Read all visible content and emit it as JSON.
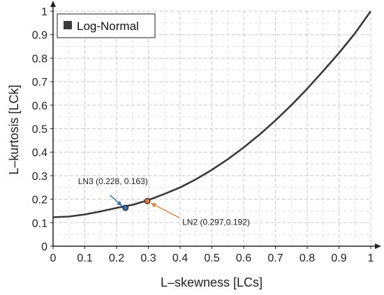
{
  "chart_data": {
    "type": "line",
    "xlabel": "L–skewness [LCs]",
    "ylabel": "L–kurtosis [LCk]",
    "xlim": [
      0,
      1
    ],
    "ylim": [
      0,
      1
    ],
    "x_ticks": [
      "0",
      "0.1",
      "0.2",
      "0.3",
      "0.4",
      "0.5",
      "0.6",
      "0.7",
      "0.8",
      "0.9",
      "1"
    ],
    "y_ticks": [
      "0",
      "0.1",
      "0.2",
      "0.3",
      "0.4",
      "0.5",
      "0.6",
      "0.7",
      "0.8",
      "0.9",
      "1"
    ],
    "grid": true,
    "legend": {
      "position": "top-left",
      "entries": [
        "Log-Normal"
      ]
    },
    "series": [
      {
        "name": "Log-Normal",
        "color": "#3a3a3a",
        "x": [
          0,
          0.05,
          0.1,
          0.15,
          0.2,
          0.25,
          0.3,
          0.35,
          0.4,
          0.45,
          0.5,
          0.55,
          0.6,
          0.65,
          0.7,
          0.75,
          0.8,
          0.85,
          0.9,
          0.95,
          1.0
        ],
        "y": [
          0.123,
          0.126,
          0.135,
          0.148,
          0.163,
          0.176,
          0.196,
          0.222,
          0.25,
          0.285,
          0.325,
          0.37,
          0.42,
          0.475,
          0.535,
          0.6,
          0.67,
          0.745,
          0.822,
          0.905,
          1.0
        ]
      }
    ],
    "points": [
      {
        "label": "LN3 (0.228, 0.163)",
        "x": 0.228,
        "y": 0.163,
        "color": "#2e75b6"
      },
      {
        "label": "LN2 (0.297,0.192)",
        "x": 0.297,
        "y": 0.192,
        "color": "#ed7d31"
      }
    ]
  }
}
